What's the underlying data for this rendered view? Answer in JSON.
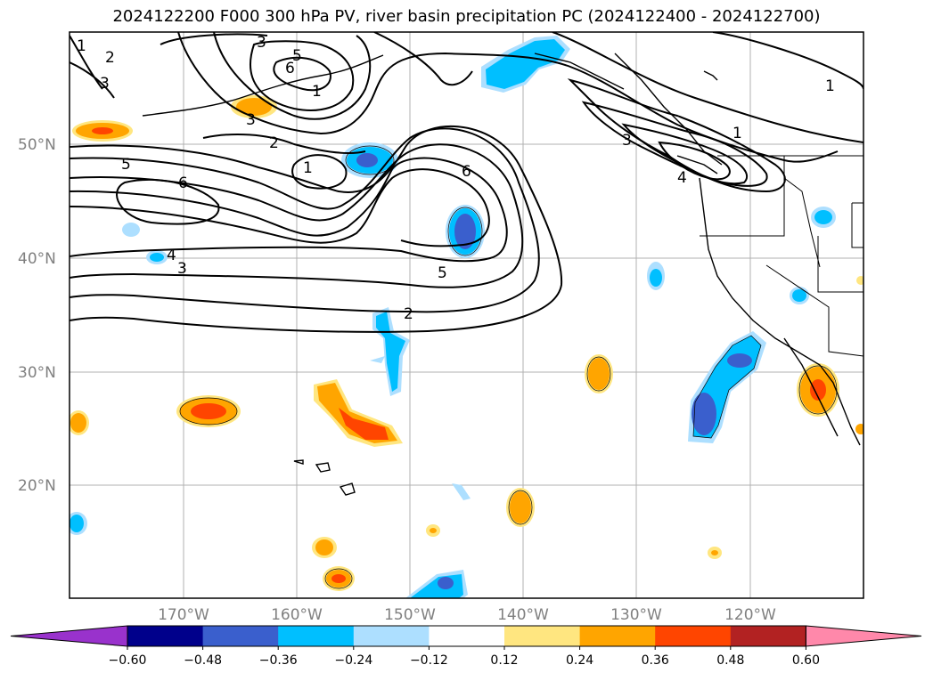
{
  "title": "2024122200 F000 300 hPa PV, river basin precipitation PC (2024122400 - 2024122700)",
  "lat_labels": [
    "50°N",
    "40°N",
    "30°N",
    "20°N"
  ],
  "lon_labels": [
    "170°W",
    "160°W",
    "150°W",
    "140°W",
    "130°W",
    "120°W"
  ],
  "pv_contour_labels": [
    "1",
    "2",
    "3",
    "3",
    "5",
    "6",
    "1",
    "3",
    "2",
    "1",
    "5",
    "6",
    "4",
    "3",
    "6",
    "5",
    "2",
    "3",
    "1",
    "4",
    "1"
  ],
  "colorbar": {
    "ticks": [
      "−0.60",
      "−0.48",
      "−0.36",
      "−0.24",
      "−0.12",
      "0.12",
      "0.24",
      "0.36",
      "0.48",
      "0.60"
    ],
    "colors": [
      "#9932CC",
      "#00008B",
      "#3A5FCD",
      "#00BFFF",
      "#ADDFFF",
      "#FFFFFF",
      "#FFE680",
      "#FFA500",
      "#FF4500",
      "#B22222",
      "#FF88AA"
    ]
  }
}
